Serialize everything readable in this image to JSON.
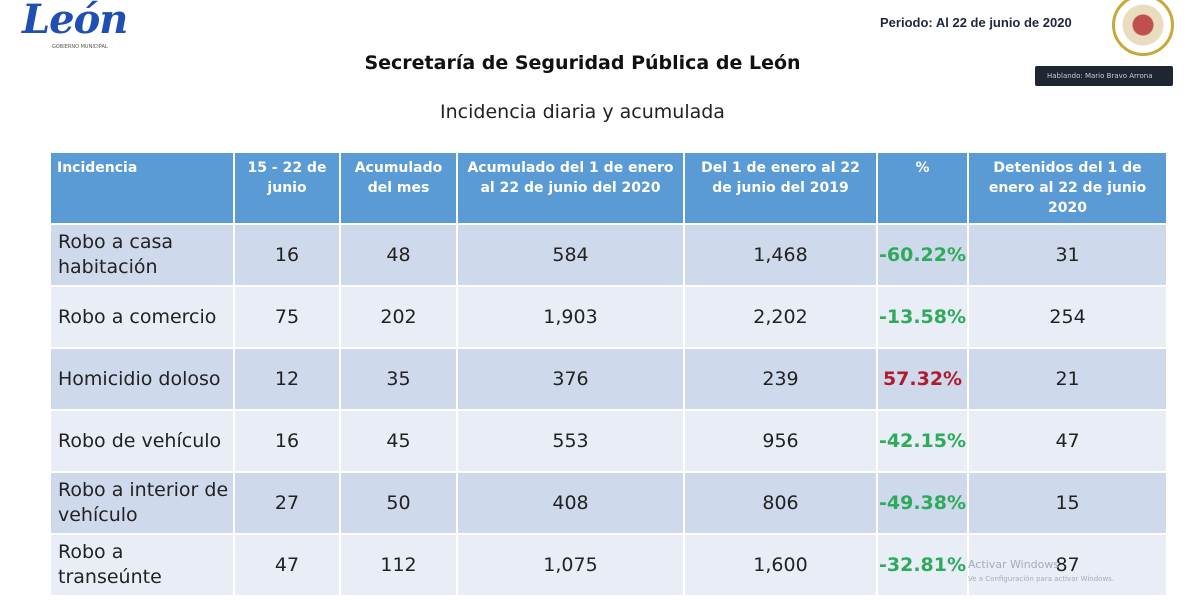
{
  "logo": {
    "text": "León",
    "sub": "GOBIERNO MUNICIPAL"
  },
  "period": "Periodo: Al 22 de junio de 2020",
  "speaker": "Hablando: Mario Bravo Arrona",
  "title": "Secretaría de Seguridad Pública de León",
  "subtitle": "Incidencia diaria y acumulada",
  "colors": {
    "header": "#5b9bd5",
    "row_odd": "#cfd9ec",
    "row_even": "#e8edf6",
    "decrease": "#2eaa5c",
    "increase": "#b01c2e"
  },
  "table": {
    "headers": [
      "Incidencia",
      "15 - 22 de junio",
      "Acumulado del mes",
      "Acumulado del 1 de enero al 22 de junio del 2020",
      "Del 1 de enero al 22 de junio del 2019",
      "%",
      "Detenidos del 1 de enero al 22 de junio 2020"
    ],
    "rows": [
      {
        "cells": [
          "Robo a casa habitación",
          "16",
          "48",
          "584",
          "1,468",
          "-60.22%",
          "31"
        ],
        "trend": "down"
      },
      {
        "cells": [
          "Robo a comercio",
          "75",
          "202",
          "1,903",
          "2,202",
          "-13.58%",
          "254"
        ],
        "trend": "down"
      },
      {
        "cells": [
          "Homicidio doloso",
          "12",
          "35",
          "376",
          "239",
          "57.32%",
          "21"
        ],
        "trend": "up"
      },
      {
        "cells": [
          "Robo de vehículo",
          "16",
          "45",
          "553",
          "956",
          "-42.15%",
          "47"
        ],
        "trend": "down"
      },
      {
        "cells": [
          "Robo a interior de vehículo",
          "27",
          "50",
          "408",
          "806",
          "-49.38%",
          "15"
        ],
        "trend": "down"
      },
      {
        "cells": [
          "Robo a transeúnte",
          "47",
          "112",
          "1,075",
          "1,600",
          "-32.81%",
          "87"
        ],
        "trend": "down"
      }
    ]
  },
  "watermark": {
    "line1": "Activar Windows",
    "line2": "Ve a Configuración para activar Windows."
  }
}
